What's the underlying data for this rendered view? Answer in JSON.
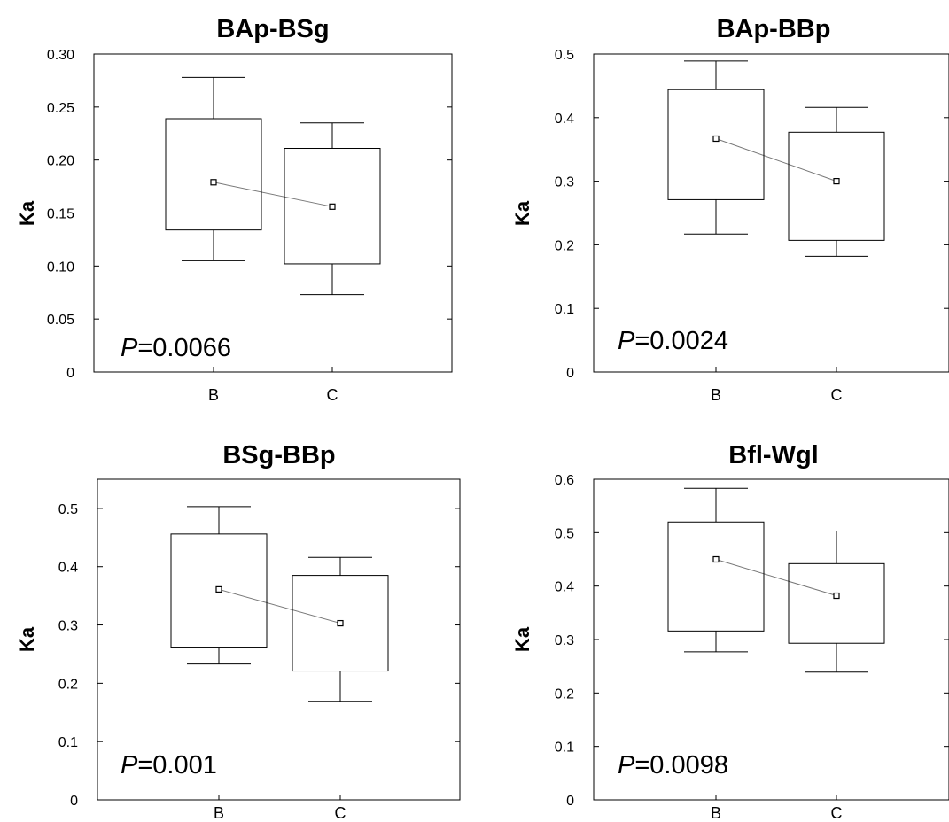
{
  "chart_data": [
    {
      "type": "box",
      "title": "BAp-BSg",
      "ylabel": "Ka",
      "categories": [
        "B",
        "C"
      ],
      "ylim": [
        0,
        0.3
      ],
      "yticks": [
        "0",
        "0.05",
        "0.10",
        "0.15",
        "0.20",
        "0.25",
        "0.30"
      ],
      "ytick_values": [
        0,
        0.05,
        0.1,
        0.15,
        0.2,
        0.25,
        0.3
      ],
      "series": [
        {
          "category": "B",
          "whisker_low": 0.105,
          "q1": 0.134,
          "center": 0.179,
          "q3": 0.239,
          "whisker_high": 0.278
        },
        {
          "category": "C",
          "whisker_low": 0.073,
          "q1": 0.102,
          "center": 0.156,
          "q3": 0.211,
          "whisker_high": 0.235
        }
      ],
      "annotation": {
        "prefix": "P",
        "text": "=0.0066"
      }
    },
    {
      "type": "box",
      "title": "BAp-BBp",
      "ylabel": "Ka",
      "categories": [
        "B",
        "C"
      ],
      "ylim": [
        0,
        0.5
      ],
      "yticks": [
        "0",
        "0.1",
        "0.2",
        "0.3",
        "0.4",
        "0.5"
      ],
      "ytick_values": [
        0,
        0.1,
        0.2,
        0.3,
        0.4,
        0.5
      ],
      "series": [
        {
          "category": "B",
          "whisker_low": 0.217,
          "q1": 0.271,
          "center": 0.367,
          "q3": 0.444,
          "whisker_high": 0.489
        },
        {
          "category": "C",
          "whisker_low": 0.182,
          "q1": 0.207,
          "center": 0.3,
          "q3": 0.377,
          "whisker_high": 0.416
        }
      ],
      "annotation": {
        "prefix": "P",
        "text": "=0.0024"
      }
    },
    {
      "type": "box",
      "title": "BSg-BBp",
      "ylabel": "Ka",
      "categories": [
        "B",
        "C"
      ],
      "ylim": [
        0,
        0.55
      ],
      "yticks": [
        "0",
        "0.1",
        "0.2",
        "0.3",
        "0.4",
        "0.5"
      ],
      "ytick_values": [
        0,
        0.1,
        0.2,
        0.3,
        0.4,
        0.5
      ],
      "series": [
        {
          "category": "B",
          "whisker_low": 0.233,
          "q1": 0.262,
          "center": 0.361,
          "q3": 0.456,
          "whisker_high": 0.503
        },
        {
          "category": "C",
          "whisker_low": 0.169,
          "q1": 0.221,
          "center": 0.303,
          "q3": 0.385,
          "whisker_high": 0.416
        }
      ],
      "annotation": {
        "prefix": "P",
        "text": "=0.001"
      }
    },
    {
      "type": "box",
      "title": "Bfl-Wgl",
      "ylabel": "Ka",
      "categories": [
        "B",
        "C"
      ],
      "ylim": [
        0,
        0.6
      ],
      "yticks": [
        "0",
        "0.1",
        "0.2",
        "0.3",
        "0.4",
        "0.5",
        "0.6"
      ],
      "ytick_values": [
        0,
        0.1,
        0.2,
        0.3,
        0.4,
        0.5,
        0.6
      ],
      "series": [
        {
          "category": "B",
          "whisker_low": 0.277,
          "q1": 0.316,
          "center": 0.45,
          "q3": 0.52,
          "whisker_high": 0.583
        },
        {
          "category": "C",
          "whisker_low": 0.239,
          "q1": 0.293,
          "center": 0.382,
          "q3": 0.442,
          "whisker_high": 0.503
        }
      ],
      "annotation": {
        "prefix": "P",
        "text": "=0.0098"
      }
    }
  ]
}
